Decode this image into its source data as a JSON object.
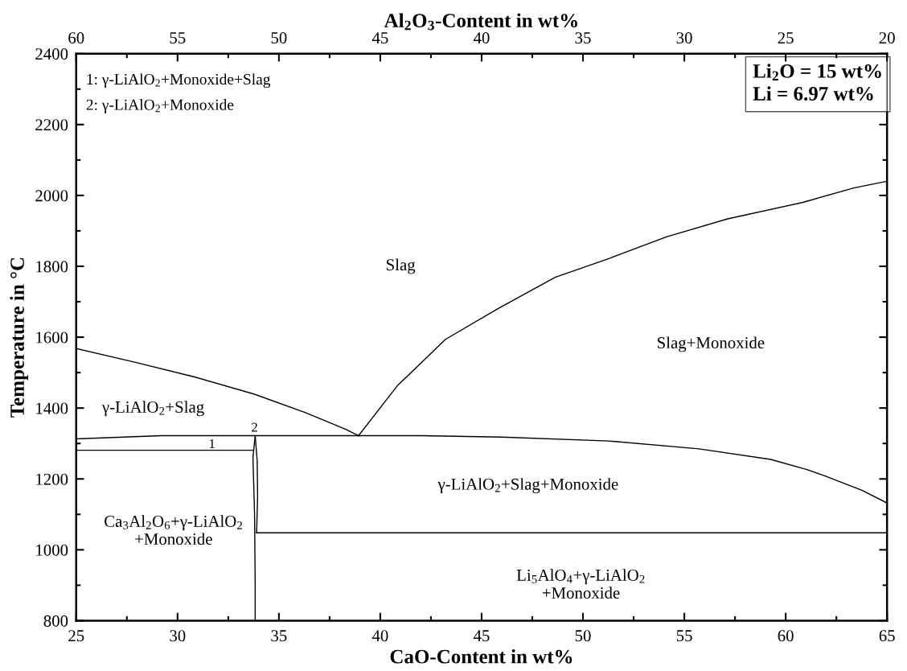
{
  "chart_data": {
    "type": "line",
    "xlabel": "CaO-Content in wt%",
    "ylabel": "Temperature in °C",
    "x2label": "Al$_{2}$O$_{3}$-Content in wt%",
    "xlim": [
      25,
      65
    ],
    "xticks": [
      25,
      30,
      35,
      40,
      45,
      50,
      55,
      60,
      65
    ],
    "x2lim": [
      60,
      20
    ],
    "x2ticks": [
      60,
      55,
      50,
      45,
      40,
      35,
      30,
      25,
      20
    ],
    "ylim": [
      800,
      2400
    ],
    "yticks": [
      800,
      1000,
      1200,
      1400,
      1600,
      1800,
      2000,
      2200,
      2400
    ],
    "grid": false,
    "marker": "none",
    "line_style": "solid",
    "series": [
      {
        "color": "#000000",
        "x": [
          25,
          27.84,
          30.76,
          33.8,
          36.31,
          38.3,
          38.93
        ],
        "values": [
          1568,
          1530,
          1489,
          1439,
          1387,
          1340,
          1322
        ]
      },
      {
        "color": "#000000",
        "x": [
          38.93,
          40.83,
          43.22,
          45.79,
          48.63,
          51.28,
          54.12,
          57.14,
          60.82,
          63.36,
          65
        ],
        "values": [
          1322,
          1462,
          1594,
          1680,
          1769,
          1822,
          1883,
          1934,
          1980,
          2021,
          2040
        ]
      },
      {
        "color": "#000000",
        "x": [
          25,
          29.2,
          33.83,
          38.93,
          42,
          45.97,
          51.28,
          55.72,
          59.26,
          61.08,
          61.92,
          63.76,
          65
        ],
        "values": [
          1313,
          1322,
          1322,
          1322,
          1322,
          1318,
          1307,
          1285,
          1255,
          1226,
          1209,
          1168,
          1132
        ]
      },
      {
        "color": "#000000",
        "x": [
          25,
          33.73
        ],
        "values": [
          1281,
          1281
        ]
      },
      {
        "color": "#000000",
        "x": [
          33.83,
          33.72,
          33.8,
          33.83,
          33.83
        ],
        "values": [
          1322,
          1260,
          1100,
          900,
          800
        ]
      },
      {
        "color": "#000000",
        "x": [
          33.83,
          33.93,
          33.95,
          33.9
        ],
        "values": [
          1322,
          1250,
          1150,
          1048
        ]
      },
      {
        "color": "#000000",
        "x": [
          33.9,
          65
        ],
        "values": [
          1048,
          1048
        ]
      }
    ],
    "annotations": [
      "Slag",
      "Slag+Monoxide",
      "γ-LiAlO$_{2}$+Slag",
      "1",
      "2",
      "γ-LiAlO$_{2}$+Slag+Monoxide",
      "Ca$_{3}$Al$_{2}$O$_{6}$+γ-LiAlO$_{2}$\n+Monoxide",
      "Li$_{5}$AlO$_{4}$+γ-LiAlO$_{2}$\n+Monoxide",
      "1: γ-LiAlO$_{2}$+Monoxide+Slag",
      "2: γ-LiAlO$_{2}$+Monoxide",
      "Li$_{2}$O = 15 wt%\nLi = 6.97 wt%"
    ]
  }
}
